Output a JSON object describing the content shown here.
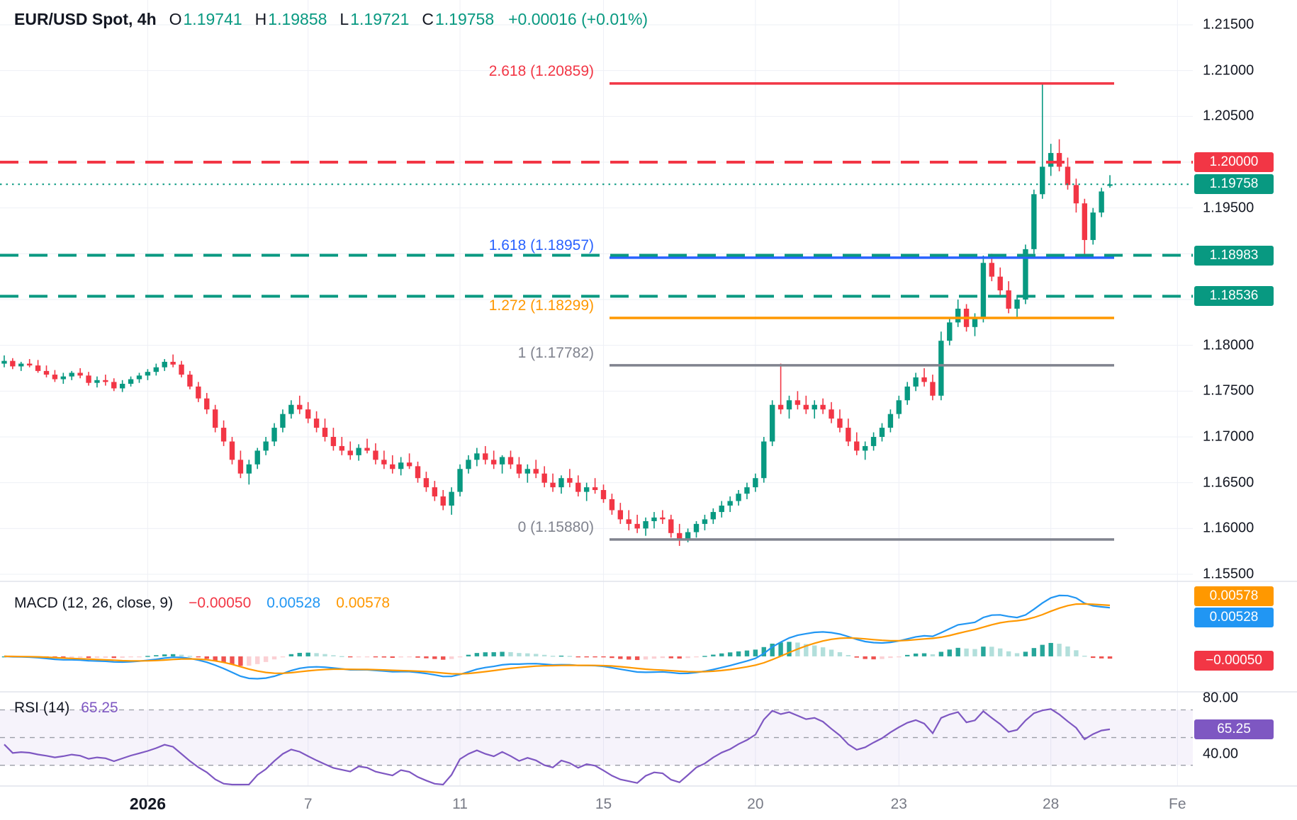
{
  "legend": {
    "symbol": "EUR/USD Spot, 4h",
    "o_label": "O",
    "o": "1.19741",
    "h_label": "H",
    "h": "1.19858",
    "l_label": "L",
    "l": "1.19721",
    "c_label": "C",
    "c": "1.19758",
    "change": "+0.00016 (+0.01%)"
  },
  "macd_legend": {
    "title": "MACD (12, 26, close, 9)",
    "hist": "−0.00050",
    "macd": "0.00528",
    "signal": "0.00578"
  },
  "rsi_legend": {
    "title": "RSI (14)",
    "value": "65.25"
  },
  "colors": {
    "up": "#089981",
    "down": "#f23645",
    "grid": "#eef0f6",
    "guide": "#9b9ea8",
    "separator": "#e0e3eb",
    "macd_line": "#2196f3",
    "signal_line": "#ff9800",
    "hist_up": "#26a69a",
    "hist_up_fade": "#b2dfdb",
    "hist_dn": "#ef5350",
    "hist_dn_fade": "#fbd0d4",
    "rsi": "#7e57c2",
    "rsi_band": "rgba(126,87,194,0.07)",
    "badge_red": "#f23645",
    "badge_teal": "#089981",
    "badge_blue": "#2196f3",
    "badge_orange": "#ff9800",
    "badge_purple": "#7e57c2"
  },
  "chart_data": {
    "type": "candlestick",
    "symbol": "EUR/USD Spot",
    "interval": "4h",
    "ohlc_display": {
      "open": 1.19741,
      "high": 1.19858,
      "low": 1.19721,
      "close": 1.19758,
      "change": "+0.00016 (+0.01%)"
    },
    "y_axis": {
      "min": 1.155,
      "max": 1.215,
      "tick_labels": [
        {
          "label": "1.21500",
          "price": 1.215
        },
        {
          "label": "1.21000",
          "price": 1.21
        },
        {
          "label": "1.20500",
          "price": 1.205
        },
        {
          "label": "1.19500",
          "price": 1.195
        },
        {
          "label": "1.18000",
          "price": 1.18
        },
        {
          "label": "1.17500",
          "price": 1.175
        },
        {
          "label": "1.17000",
          "price": 1.17
        },
        {
          "label": "1.16500",
          "price": 1.165
        },
        {
          "label": "1.16000",
          "price": 1.16
        },
        {
          "label": "1.15500",
          "price": 1.155
        }
      ]
    },
    "price_badges": [
      {
        "label": "1.20000",
        "price": 1.2,
        "color": "#f23645"
      },
      {
        "label": "1.19758",
        "price": 1.19758,
        "color": "#089981"
      },
      {
        "label": "1.18983",
        "price": 1.18983,
        "color": "#089981"
      },
      {
        "label": "1.18536",
        "price": 1.18536,
        "color": "#089981"
      }
    ],
    "fib_levels": [
      {
        "label": "2.618 (1.20859)",
        "price": 1.20859,
        "color": "#f23645"
      },
      {
        "label": "1.618 (1.18957)",
        "price": 1.18957,
        "color": "#2962ff"
      },
      {
        "label": "1.272 (1.18299)",
        "price": 1.18299,
        "color": "#ff9800"
      },
      {
        "label": "1 (1.17782)",
        "price": 1.17782,
        "color": "#80838e"
      },
      {
        "label": "0 (1.15880)",
        "price": 1.1588,
        "color": "#80838e"
      }
    ],
    "alert_lines": [
      {
        "price": 1.2,
        "style": "dashed",
        "color": "#f23645"
      },
      {
        "price": 1.18983,
        "style": "dashed",
        "color": "#089981"
      },
      {
        "price": 1.18536,
        "style": "dashed",
        "color": "#089981"
      }
    ],
    "current_price_line": {
      "price": 1.19758,
      "style": "dotted",
      "color": "#089981"
    },
    "x_labels": [
      {
        "label": "2026",
        "idx": 17,
        "bold": true
      },
      {
        "label": "7",
        "idx": 36
      },
      {
        "label": "11",
        "idx": 54
      },
      {
        "label": "15",
        "idx": 71
      },
      {
        "label": "20",
        "idx": 89
      },
      {
        "label": "23",
        "idx": 106
      },
      {
        "label": "28",
        "idx": 124
      },
      {
        "label": "Fe",
        "idx": 139
      }
    ],
    "macd": {
      "fast": 12,
      "slow": 26,
      "source": "close",
      "signal": 9
    },
    "macd_axis": {
      "signal_label": "0.00578",
      "macd_label": "0.00528",
      "hist_label": "−0.00050"
    },
    "rsi": {
      "period": 14,
      "guides": [
        80,
        60,
        40
      ]
    },
    "rsi_axis": {
      "top_label": "80.00",
      "bottom_label": "40.00",
      "value_label": "65.25"
    },
    "candles": [
      [
        1.178,
        1.1789,
        1.1776,
        1.1783
      ],
      [
        1.1783,
        1.1786,
        1.1774,
        1.1777
      ],
      [
        1.1777,
        1.1782,
        1.1772,
        1.178
      ],
      [
        1.178,
        1.1785,
        1.1776,
        1.1778
      ],
      [
        1.1778,
        1.1784,
        1.177,
        1.1772
      ],
      [
        1.1772,
        1.1778,
        1.1765,
        1.1768
      ],
      [
        1.1768,
        1.1773,
        1.176,
        1.1763
      ],
      [
        1.1763,
        1.177,
        1.1758,
        1.1766
      ],
      [
        1.1766,
        1.1772,
        1.1762,
        1.177
      ],
      [
        1.177,
        1.1775,
        1.1764,
        1.1767
      ],
      [
        1.1767,
        1.1771,
        1.1756,
        1.1759
      ],
      [
        1.1759,
        1.1766,
        1.1754,
        1.1762
      ],
      [
        1.1762,
        1.1768,
        1.1756,
        1.176
      ],
      [
        1.176,
        1.1764,
        1.175,
        1.1753
      ],
      [
        1.1753,
        1.1762,
        1.1749,
        1.1758
      ],
      [
        1.1758,
        1.1766,
        1.1755,
        1.1763
      ],
      [
        1.1763,
        1.177,
        1.1759,
        1.1767
      ],
      [
        1.1767,
        1.1774,
        1.1762,
        1.1771
      ],
      [
        1.1771,
        1.178,
        1.1767,
        1.1776
      ],
      [
        1.1776,
        1.1785,
        1.1772,
        1.1782
      ],
      [
        1.1782,
        1.179,
        1.1776,
        1.1779
      ],
      [
        1.1779,
        1.1783,
        1.1765,
        1.1768
      ],
      [
        1.1768,
        1.1772,
        1.1752,
        1.1755
      ],
      [
        1.1755,
        1.176,
        1.1738,
        1.1742
      ],
      [
        1.1742,
        1.1748,
        1.1725,
        1.173
      ],
      [
        1.173,
        1.1735,
        1.1705,
        1.171
      ],
      [
        1.171,
        1.1718,
        1.169,
        1.1695
      ],
      [
        1.1695,
        1.17,
        1.167,
        1.1675
      ],
      [
        1.1675,
        1.1685,
        1.1655,
        1.166
      ],
      [
        1.166,
        1.1675,
        1.1648,
        1.167
      ],
      [
        1.167,
        1.1688,
        1.1665,
        1.1685
      ],
      [
        1.1685,
        1.17,
        1.168,
        1.1695
      ],
      [
        1.1695,
        1.1715,
        1.169,
        1.171
      ],
      [
        1.171,
        1.173,
        1.1705,
        1.1725
      ],
      [
        1.1725,
        1.174,
        1.172,
        1.1735
      ],
      [
        1.1735,
        1.1745,
        1.1725,
        1.173
      ],
      [
        1.173,
        1.1738,
        1.1715,
        1.172
      ],
      [
        1.172,
        1.1728,
        1.1705,
        1.171
      ],
      [
        1.171,
        1.172,
        1.1695,
        1.17
      ],
      [
        1.17,
        1.171,
        1.1685,
        1.169
      ],
      [
        1.169,
        1.17,
        1.168,
        1.1685
      ],
      [
        1.1685,
        1.1695,
        1.1675,
        1.168
      ],
      [
        1.168,
        1.1692,
        1.1674,
        1.1688
      ],
      [
        1.1688,
        1.1698,
        1.1682,
        1.1685
      ],
      [
        1.1685,
        1.1693,
        1.167,
        1.1675
      ],
      [
        1.1675,
        1.1685,
        1.1665,
        1.167
      ],
      [
        1.167,
        1.168,
        1.166,
        1.1665
      ],
      [
        1.1665,
        1.1678,
        1.1658,
        1.1672
      ],
      [
        1.1672,
        1.1682,
        1.1665,
        1.1668
      ],
      [
        1.1668,
        1.1673,
        1.165,
        1.1655
      ],
      [
        1.1655,
        1.1662,
        1.164,
        1.1645
      ],
      [
        1.1645,
        1.1652,
        1.163,
        1.1635
      ],
      [
        1.1635,
        1.1642,
        1.162,
        1.1625
      ],
      [
        1.1625,
        1.1645,
        1.1615,
        1.164
      ],
      [
        1.164,
        1.167,
        1.1635,
        1.1665
      ],
      [
        1.1665,
        1.168,
        1.166,
        1.1675
      ],
      [
        1.1675,
        1.1688,
        1.1668,
        1.1682
      ],
      [
        1.1682,
        1.169,
        1.167,
        1.1675
      ],
      [
        1.1675,
        1.1685,
        1.1665,
        1.167
      ],
      [
        1.167,
        1.168,
        1.166,
        1.1678
      ],
      [
        1.1678,
        1.1685,
        1.1665,
        1.167
      ],
      [
        1.167,
        1.1678,
        1.1655,
        1.166
      ],
      [
        1.166,
        1.167,
        1.165,
        1.1665
      ],
      [
        1.1665,
        1.1675,
        1.1655,
        1.166
      ],
      [
        1.166,
        1.1668,
        1.1645,
        1.165
      ],
      [
        1.165,
        1.166,
        1.164,
        1.1645
      ],
      [
        1.1645,
        1.1658,
        1.1638,
        1.1655
      ],
      [
        1.1655,
        1.1665,
        1.1645,
        1.165
      ],
      [
        1.165,
        1.1658,
        1.1635,
        1.164
      ],
      [
        1.164,
        1.165,
        1.163,
        1.1645
      ],
      [
        1.1645,
        1.1655,
        1.1638,
        1.1642
      ],
      [
        1.1642,
        1.1648,
        1.1628,
        1.1632
      ],
      [
        1.1632,
        1.1638,
        1.1615,
        1.162
      ],
      [
        1.162,
        1.1628,
        1.1605,
        1.161
      ],
      [
        1.161,
        1.162,
        1.1598,
        1.1605
      ],
      [
        1.1605,
        1.1615,
        1.1595,
        1.16
      ],
      [
        1.16,
        1.1612,
        1.1592,
        1.1608
      ],
      [
        1.1608,
        1.1618,
        1.16,
        1.1612
      ],
      [
        1.1612,
        1.162,
        1.1605,
        1.161
      ],
      [
        1.161,
        1.1615,
        1.159,
        1.1595
      ],
      [
        1.1595,
        1.1605,
        1.1581,
        1.1588
      ],
      [
        1.1588,
        1.16,
        1.1585,
        1.1596
      ],
      [
        1.1596,
        1.1608,
        1.159,
        1.1605
      ],
      [
        1.1605,
        1.1615,
        1.1598,
        1.161
      ],
      [
        1.161,
        1.1622,
        1.1605,
        1.1618
      ],
      [
        1.1618,
        1.163,
        1.1612,
        1.1625
      ],
      [
        1.1625,
        1.1635,
        1.1618,
        1.163
      ],
      [
        1.163,
        1.1642,
        1.1625,
        1.1638
      ],
      [
        1.1638,
        1.165,
        1.1632,
        1.1645
      ],
      [
        1.1645,
        1.166,
        1.164,
        1.1655
      ],
      [
        1.1655,
        1.17,
        1.165,
        1.1695
      ],
      [
        1.1695,
        1.174,
        1.169,
        1.1735
      ],
      [
        1.1735,
        1.178,
        1.1725,
        1.173
      ],
      [
        1.173,
        1.1745,
        1.172,
        1.174
      ],
      [
        1.174,
        1.175,
        1.173,
        1.1735
      ],
      [
        1.1735,
        1.1745,
        1.1725,
        1.173
      ],
      [
        1.173,
        1.174,
        1.172,
        1.1735
      ],
      [
        1.1735,
        1.1742,
        1.1725,
        1.173
      ],
      [
        1.173,
        1.1738,
        1.1715,
        1.172
      ],
      [
        1.172,
        1.173,
        1.1705,
        1.171
      ],
      [
        1.171,
        1.172,
        1.169,
        1.1695
      ],
      [
        1.1695,
        1.1705,
        1.168,
        1.1685
      ],
      [
        1.1685,
        1.1695,
        1.1675,
        1.169
      ],
      [
        1.169,
        1.1705,
        1.1685,
        1.17
      ],
      [
        1.17,
        1.1715,
        1.1695,
        1.171
      ],
      [
        1.171,
        1.173,
        1.1705,
        1.1725
      ],
      [
        1.1725,
        1.1745,
        1.172,
        1.174
      ],
      [
        1.174,
        1.176,
        1.1735,
        1.1755
      ],
      [
        1.1755,
        1.177,
        1.175,
        1.1765
      ],
      [
        1.1765,
        1.1775,
        1.1755,
        1.176
      ],
      [
        1.176,
        1.1768,
        1.174,
        1.1745
      ],
      [
        1.1745,
        1.1815,
        1.174,
        1.1805
      ],
      [
        1.1805,
        1.183,
        1.18,
        1.1825
      ],
      [
        1.1825,
        1.185,
        1.182,
        1.184
      ],
      [
        1.184,
        1.1845,
        1.1815,
        1.182
      ],
      [
        1.182,
        1.1835,
        1.181,
        1.183
      ],
      [
        1.183,
        1.1898,
        1.1825,
        1.189
      ],
      [
        1.189,
        1.19,
        1.187,
        1.1875
      ],
      [
        1.1875,
        1.1885,
        1.1855,
        1.186
      ],
      [
        1.186,
        1.187,
        1.1835,
        1.184
      ],
      [
        1.184,
        1.1855,
        1.183,
        1.185
      ],
      [
        1.185,
        1.191,
        1.1845,
        1.1905
      ],
      [
        1.1905,
        1.197,
        1.19,
        1.1965
      ],
      [
        1.1965,
        1.20859,
        1.196,
        1.1995
      ],
      [
        1.1995,
        1.202,
        1.1985,
        1.201
      ],
      [
        1.201,
        1.2025,
        1.199,
        1.1995
      ],
      [
        1.1995,
        1.2005,
        1.197,
        1.1975
      ],
      [
        1.1975,
        1.1982,
        1.1945,
        1.1955
      ],
      [
        1.1955,
        1.196,
        1.18985,
        1.1915
      ],
      [
        1.1915,
        1.195,
        1.191,
        1.1945
      ],
      [
        1.1945,
        1.1972,
        1.194,
        1.1968
      ],
      [
        1.19741,
        1.19858,
        1.19721,
        1.19758
      ]
    ]
  }
}
